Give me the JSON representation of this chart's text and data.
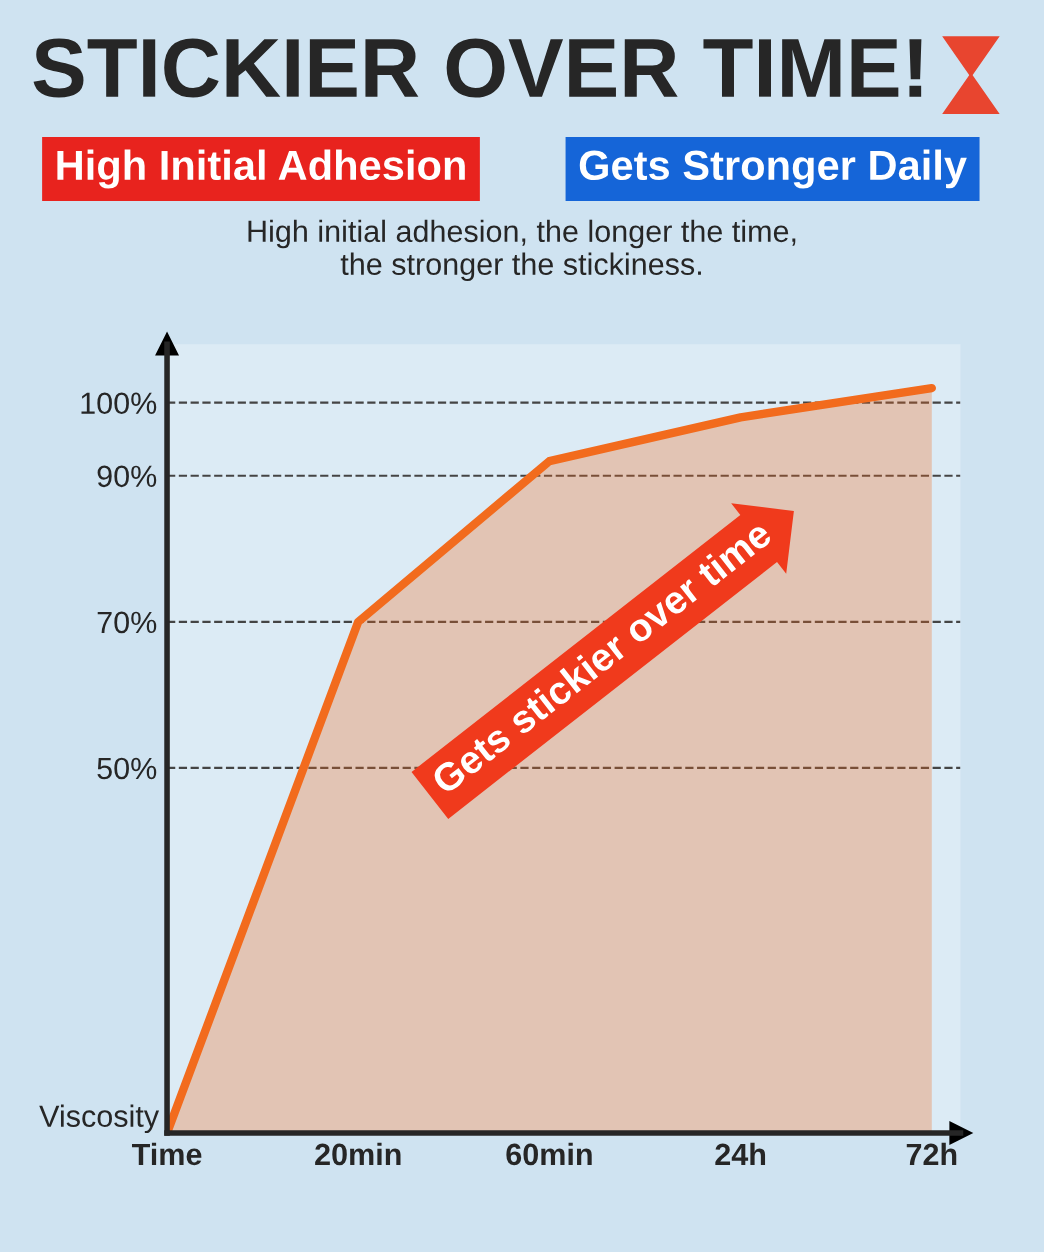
{
  "chart_data": {
    "type": "area",
    "title": "STICKIER OVER TIME!",
    "subtitle": "High initial adhesion, the longer the time,\nthe stronger the stickiness.",
    "ylabel": "Viscosity",
    "categories": [
      "Time",
      "20min",
      "60min",
      "24h",
      "72h"
    ],
    "series": [
      {
        "color": "#f26b1d",
        "values": [
          0,
          70,
          92,
          98,
          102
        ]
      }
    ],
    "ylim": [
      0,
      108
    ],
    "yticks": [
      {
        "value": 50,
        "label": "50%"
      },
      {
        "value": 70,
        "label": "70%"
      },
      {
        "value": 90,
        "label": "90%"
      },
      {
        "value": 100,
        "label": "100%"
      }
    ],
    "grid": "y",
    "marker": "none",
    "line_style": "solid",
    "annotations": [
      "High Initial Adhesion",
      "Gets Stronger Daily",
      "Gets stickier over time"
    ]
  }
}
